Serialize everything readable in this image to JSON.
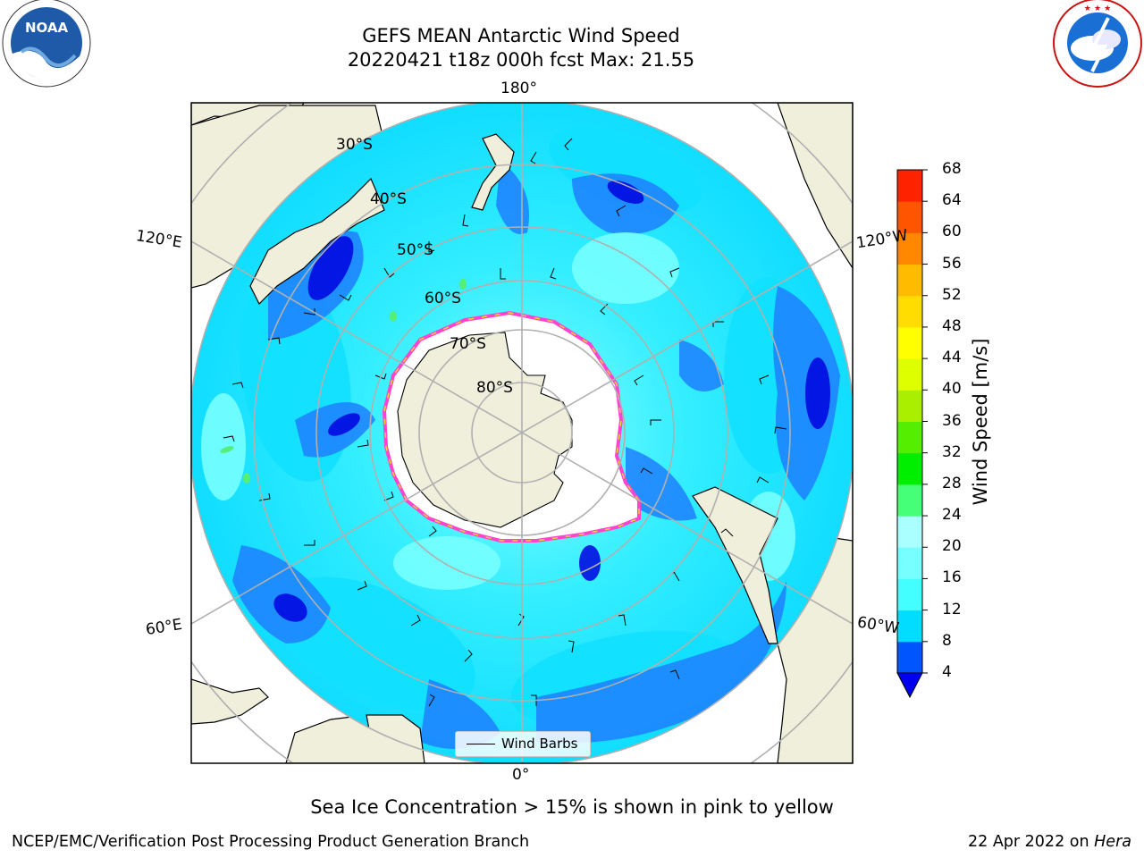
{
  "title": {
    "line1": "GEFS MEAN Antarctic Wind Speed",
    "line2": "20220421 t18z 000h fcst   Max: 21.55"
  },
  "map": {
    "projection": "south-polar-stereographic",
    "lon_labels": {
      "top": "180°",
      "bottom": "0°",
      "upper_left": "120°E",
      "upper_right": "120°W",
      "lower_left": "60°E",
      "lower_right": "60°W"
    },
    "lat_labels": [
      "30°S",
      "40°S",
      "50°S",
      "60°S",
      "70°S",
      "80°S"
    ],
    "land_color": "#efefdc",
    "grid_color": "#b0b0b0"
  },
  "legend": {
    "wind_barbs_label": "Wind Barbs",
    "logo_noaa": "noaa-logo",
    "logo_nws": "nws-logo"
  },
  "colorbar": {
    "label": "Wind Speed [m/s]",
    "ticks": [
      "4",
      "8",
      "12",
      "16",
      "20",
      "24",
      "28",
      "32",
      "36",
      "40",
      "44",
      "48",
      "52",
      "56",
      "60",
      "64",
      "68"
    ],
    "colors": [
      "#0055ff",
      "#00ddff",
      "#44ffff",
      "#77ffff",
      "#aaffff",
      "#44ff77",
      "#00ee00",
      "#55ee00",
      "#aaee00",
      "#ddff00",
      "#ffff00",
      "#ffdd00",
      "#ffbb00",
      "#ff8800",
      "#ff5500",
      "#ff2200",
      "#ff0000"
    ],
    "under_color": "#0000ee"
  },
  "subcaption": "Sea Ice Concentration > 15% is shown in pink to yellow",
  "footer": {
    "left": "NCEP/EMC/Verification Post Processing Product Generation Branch",
    "right_date": "22 Apr 2022 on ",
    "right_host": "Hera"
  }
}
